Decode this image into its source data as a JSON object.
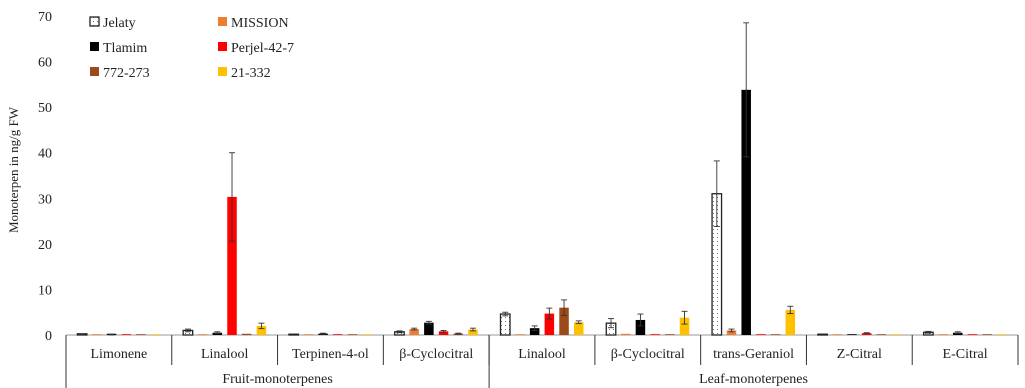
{
  "chart_data": {
    "type": "bar",
    "ylabel": "Monoterpen in ng/g FW",
    "ylim": [
      0,
      70
    ],
    "yticks": [
      0,
      10,
      20,
      30,
      40,
      50,
      60,
      70
    ],
    "grid": false,
    "legend_position": "top-left",
    "groups": [
      {
        "label": "Fruit-monoterpenes",
        "categories": [
          "Limonene",
          "Linalool",
          "Terpinen-4-ol",
          "β-Cyclocitral"
        ]
      },
      {
        "label": "Leaf-monoterpenes",
        "categories": [
          "Linalool",
          "β-Cyclocitral",
          "trans-Geraniol",
          "Z-Citral",
          "E-Citral"
        ]
      }
    ],
    "categories": [
      "Limonene",
      "Linalool",
      "Terpinen-4-ol",
      "β-Cyclocitral",
      "Linalool",
      "β-Cyclocitral",
      "trans-Geraniol",
      "Z-Citral",
      "E-Citral"
    ],
    "series": [
      {
        "name": "Jelaty",
        "color": "#ffffff",
        "pattern": "dots",
        "values": [
          0.1,
          1.0,
          0,
          0.7,
          4.6,
          2.6,
          31.0,
          0,
          0.6
        ],
        "errors": [
          0.1,
          0.3,
          0,
          0.2,
          0.4,
          1.0,
          7.2,
          0,
          0.2
        ]
      },
      {
        "name": "MISSION",
        "color": "#ed7d31",
        "values": [
          0,
          0,
          0,
          1.3,
          0,
          0.2,
          1.0,
          0,
          0
        ],
        "errors": [
          0,
          0,
          0,
          0.2,
          0,
          0,
          0.3,
          0,
          0
        ]
      },
      {
        "name": "Tlamim",
        "color": "#000000",
        "values": [
          0.1,
          0.5,
          0.3,
          2.7,
          1.5,
          3.3,
          53.8,
          0,
          0.5
        ],
        "errors": [
          0.1,
          0.2,
          0.1,
          0.3,
          0.5,
          1.3,
          14.7,
          0,
          0.2
        ]
      },
      {
        "name": "Perjel-42-7",
        "color": "#ff0000",
        "values": [
          0,
          30.3,
          0,
          0.8,
          4.7,
          0,
          0,
          0.4,
          0
        ],
        "errors": [
          0,
          9.7,
          0,
          0.2,
          1.2,
          0,
          0,
          0.1,
          0
        ]
      },
      {
        "name": "772-273",
        "color": "#9c4a1a",
        "values": [
          0,
          0.1,
          0,
          0.3,
          6.0,
          0,
          0,
          0,
          0
        ],
        "errors": [
          0,
          0,
          0,
          0.1,
          1.7,
          0,
          0,
          0,
          0
        ]
      },
      {
        "name": "21-332",
        "color": "#ffc000",
        "values": [
          0,
          2.0,
          0,
          1.2,
          2.8,
          3.8,
          5.5,
          0,
          0
        ],
        "errors": [
          0,
          0.6,
          0,
          0.3,
          0.3,
          1.4,
          0.8,
          0,
          0
        ]
      }
    ]
  }
}
